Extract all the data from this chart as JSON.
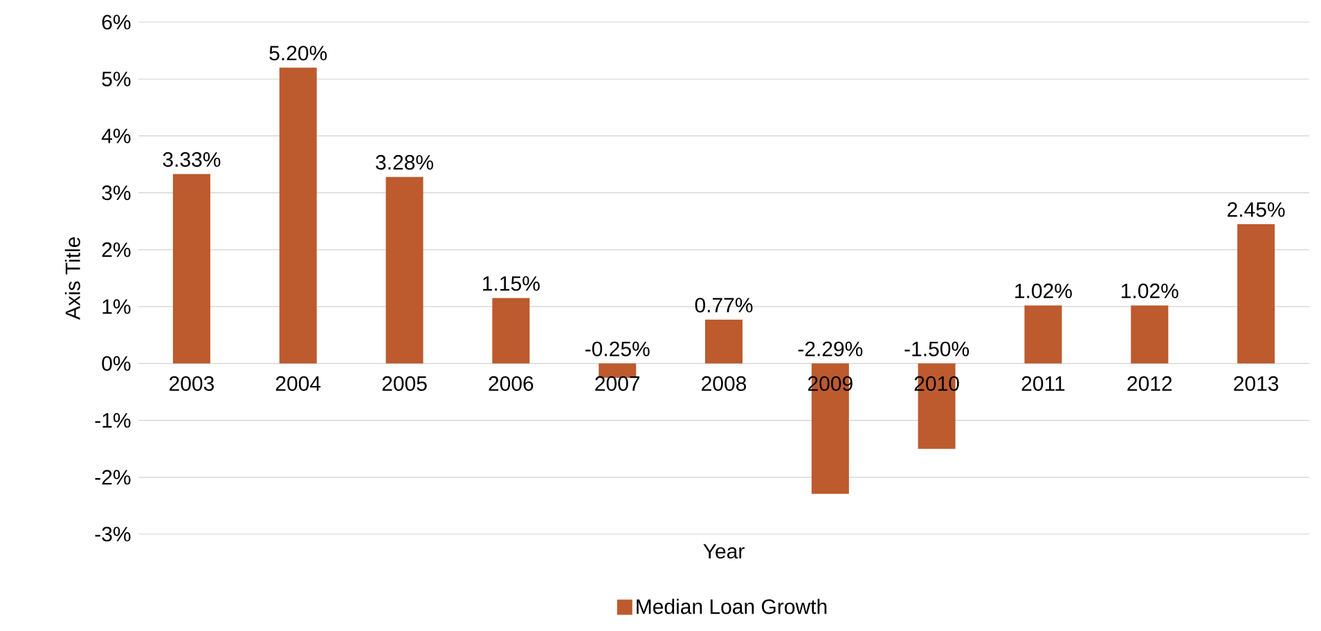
{
  "chart_data": {
    "type": "bar",
    "xlabel": "Year",
    "ylabel": "Axis Title",
    "categories": [
      "2003",
      "2004",
      "2005",
      "2006",
      "2007",
      "2008",
      "2009",
      "2010",
      "2011",
      "2012",
      "2013"
    ],
    "series": [
      {
        "name": "Median Loan Growth",
        "color": "#bd5a2e",
        "values": [
          3.33,
          5.2,
          3.28,
          1.15,
          -0.25,
          0.77,
          -2.29,
          -1.5,
          1.02,
          1.02,
          2.45
        ],
        "value_labels": [
          "3.33%",
          "5.20%",
          "3.28%",
          "1.15%",
          "-0.25%",
          "0.77%",
          "-2.29%",
          "-1.50%",
          "1.02%",
          "1.02%",
          "2.45%"
        ]
      }
    ],
    "ylim": [
      -3,
      6
    ],
    "yticks": [
      {
        "value": -3,
        "label": "-3%"
      },
      {
        "value": -2,
        "label": "-2%"
      },
      {
        "value": -1,
        "label": "-1%"
      },
      {
        "value": 0,
        "label": "0%"
      },
      {
        "value": 1,
        "label": "1%"
      },
      {
        "value": 2,
        "label": "2%"
      },
      {
        "value": 3,
        "label": "3%"
      },
      {
        "value": 4,
        "label": "4%"
      },
      {
        "value": 5,
        "label": "5%"
      },
      {
        "value": 6,
        "label": "6%"
      }
    ],
    "grid": "y",
    "legend": "bottom"
  }
}
